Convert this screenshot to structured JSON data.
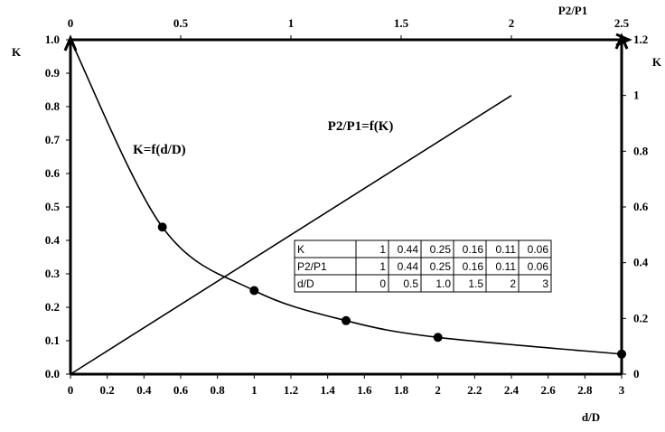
{
  "chart_data": {
    "type": "line",
    "axes": {
      "bottom": {
        "label": "d/D",
        "range": [
          0,
          3
        ],
        "ticks": [
          "0",
          "0.2",
          "0.4",
          "0.6",
          "0.8",
          "1",
          "1.2",
          "1.4",
          "1.6",
          "1.8",
          "2",
          "2.2",
          "2.4",
          "2.6",
          "2.8",
          "3"
        ]
      },
      "left": {
        "label": "K",
        "range": [
          0,
          1
        ],
        "ticks": [
          "0.0",
          "0.1",
          "0.2",
          "0.3",
          "0.4",
          "0.5",
          "0.6",
          "0.7",
          "0.8",
          "0.9",
          "1.0"
        ]
      },
      "top": {
        "label": "P2/P1",
        "range": [
          0,
          2.5
        ],
        "ticks": [
          "0",
          "0.5",
          "1",
          "1.5",
          "2",
          "2.5"
        ]
      },
      "right": {
        "label": "K",
        "range": [
          0,
          1.2
        ],
        "ticks": [
          "0",
          "0.2",
          "0.4",
          "0.6",
          "0.8",
          "1",
          "1.2"
        ]
      }
    },
    "series": [
      {
        "name": "K=f(d/D)",
        "axes": "bottom-left",
        "markers": true,
        "x": [
          0,
          0.5,
          1.0,
          1.5,
          2,
          3
        ],
        "y": [
          1,
          0.44,
          0.25,
          0.16,
          0.11,
          0.06
        ]
      },
      {
        "name": "P2/P1=f(K)",
        "axes": "top-right",
        "markers": false,
        "x": [
          0,
          2
        ],
        "y": [
          0,
          1
        ]
      }
    ],
    "annotations": [
      {
        "text": "K=f(d/D)",
        "at_data": [
          0.34,
          0.66
        ]
      },
      {
        "text": "P2/P1=f(K)",
        "at_data": [
          1.4,
          0.73
        ]
      }
    ],
    "grid": false,
    "table": {
      "rows": [
        {
          "label": "K",
          "values": [
            "1",
            "0.44",
            "0.25",
            "0.16",
            "0.11",
            "0.06"
          ]
        },
        {
          "label": "P2/P1",
          "values": [
            "1",
            "0.44",
            "0.25",
            "0.16",
            "0.11",
            "0.06"
          ]
        },
        {
          "label": "d/D",
          "values": [
            "0",
            "0.5",
            "1.0",
            "1.5",
            "2",
            "3"
          ]
        }
      ]
    }
  }
}
